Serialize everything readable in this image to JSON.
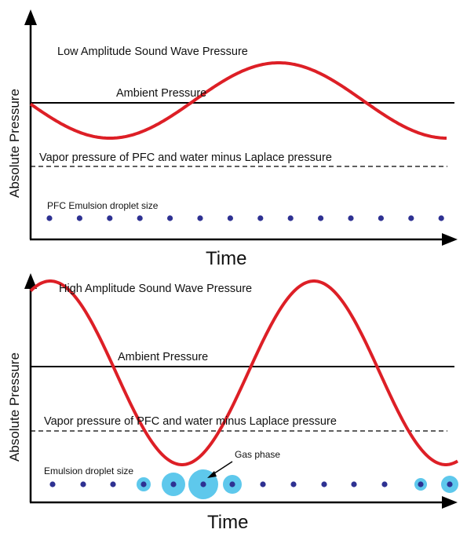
{
  "panels": [
    {
      "title": "Low Amplitude Sound Wave Pressure",
      "ambient_label": "Ambient Pressure",
      "vapor_label": "Vapor pressure of PFC and water minus Laplace pressure",
      "droplet_label": "PFC Emulsion droplet size",
      "y_axis_label": "Absolute Pressure",
      "x_axis_label": "Time"
    },
    {
      "title": "High Amplitude Sound Wave Pressure",
      "ambient_label": "Ambient Pressure",
      "vapor_label": "Vapor pressure of PFC and water minus Laplace pressure",
      "droplet_label": "Emulsion droplet size",
      "gas_phase_label": "Gas phase",
      "y_axis_label": "Absolute Pressure",
      "x_axis_label": "Time"
    }
  ],
  "colors": {
    "wave": "#dd1f26",
    "axis": "#000000",
    "droplet_core": "#2e3192",
    "gas_halo": "#5ec8ec"
  }
}
